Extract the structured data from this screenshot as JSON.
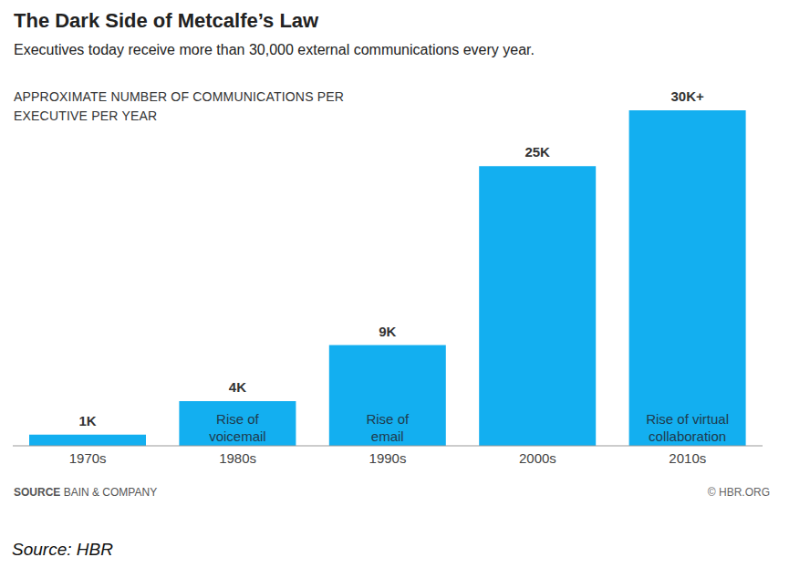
{
  "chart_data": {
    "type": "bar",
    "title": "The Dark Side of Metcalfe’s Law",
    "subtitle": "Executives today receive more than 30,000 external communications every year.",
    "y_label": "APPROXIMATE NUMBER OF COMMUNICATIONS PER EXECUTIVE PER YEAR",
    "categories": [
      "1970s",
      "1980s",
      "1990s",
      "2000s",
      "2010s"
    ],
    "values": [
      1000,
      4000,
      9000,
      25000,
      30000
    ],
    "value_labels": [
      "1K",
      "4K",
      "9K",
      "25K",
      "30K+"
    ],
    "annotations": [
      null,
      "Rise of voicemail",
      "Rise of email",
      null,
      "Rise of virtual collaboration"
    ],
    "color": "#13aff0",
    "ylim": [
      0,
      30000
    ],
    "data_labels": true,
    "tick_labels": "x",
    "grid": false,
    "source_label": "SOURCE",
    "source": "BAIN & COMPANY",
    "credit": "© HBR.ORG",
    "caption": "Source: HBR"
  }
}
